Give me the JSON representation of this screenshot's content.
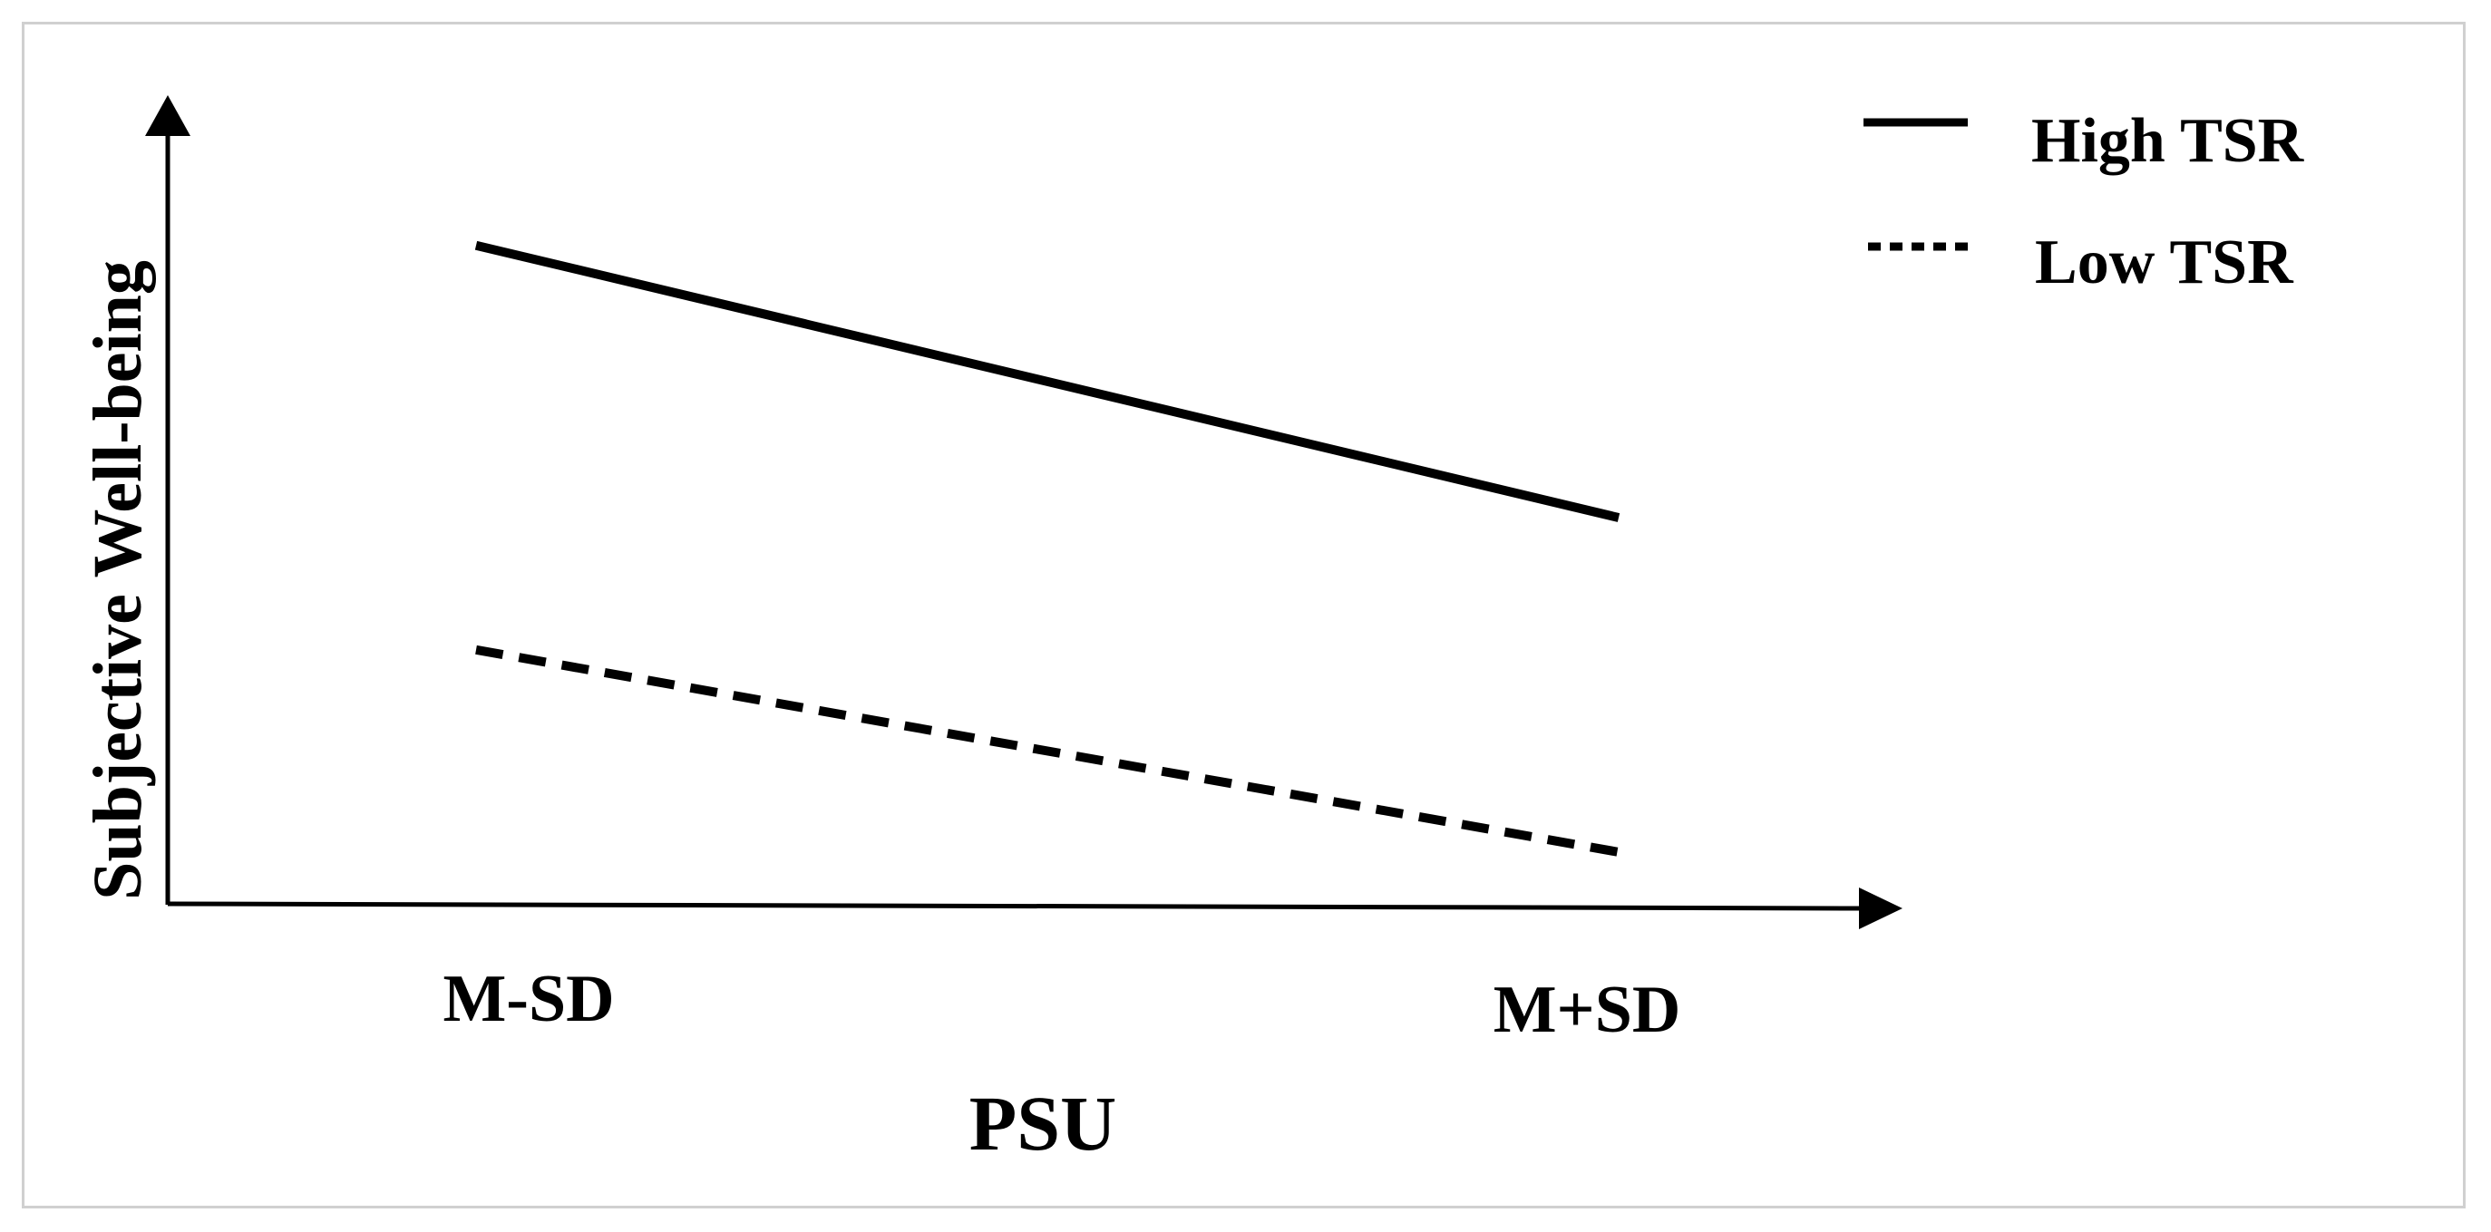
{
  "chart_data": {
    "type": "line",
    "title": "",
    "xlabel": "PSU",
    "ylabel": "Subjective Well-being",
    "categories": [
      "M-SD",
      "M+SD"
    ],
    "ylim": [
      0,
      100
    ],
    "grid": false,
    "legend_placement": "top-right",
    "series": [
      {
        "name": "High TSR",
        "values": [
          85,
          50
        ],
        "style": "solid",
        "color": "#000000"
      },
      {
        "name": "Low TSR",
        "values": [
          33,
          7
        ],
        "style": "dashed",
        "color": "#000000"
      }
    ]
  }
}
